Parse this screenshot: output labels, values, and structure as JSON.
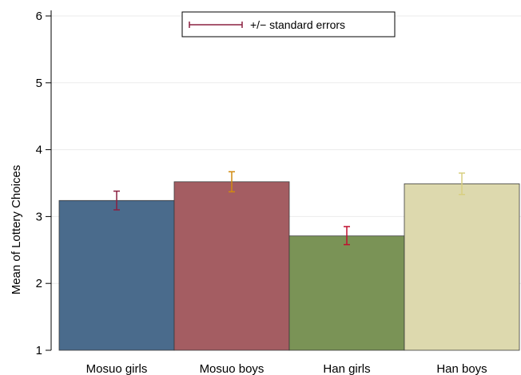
{
  "chart_data": {
    "type": "bar",
    "title": "",
    "xlabel": "",
    "ylabel": "Mean of Lottery Choices",
    "ylim": [
      1,
      6
    ],
    "yticks": [
      1,
      2,
      3,
      4,
      5,
      6
    ],
    "grid": true,
    "legend_placement": "top-center",
    "legend": {
      "label": "+/− standard errors",
      "color": "#8b2040"
    },
    "categories": [
      "Mosuo girls",
      "Mosuo boys",
      "Han girls",
      "Han boys"
    ],
    "values": [
      3.24,
      3.52,
      2.71,
      3.49
    ],
    "error_low": [
      3.1,
      3.37,
      2.58,
      3.33
    ],
    "error_high": [
      3.38,
      3.67,
      2.85,
      3.65
    ],
    "bar_colors": [
      "#4a6b8c",
      "#a45d62",
      "#7a9356",
      "#ddd9ae"
    ],
    "error_colors": [
      "#8b2040",
      "#d08a10",
      "#c01030",
      "#d8cf80"
    ]
  }
}
